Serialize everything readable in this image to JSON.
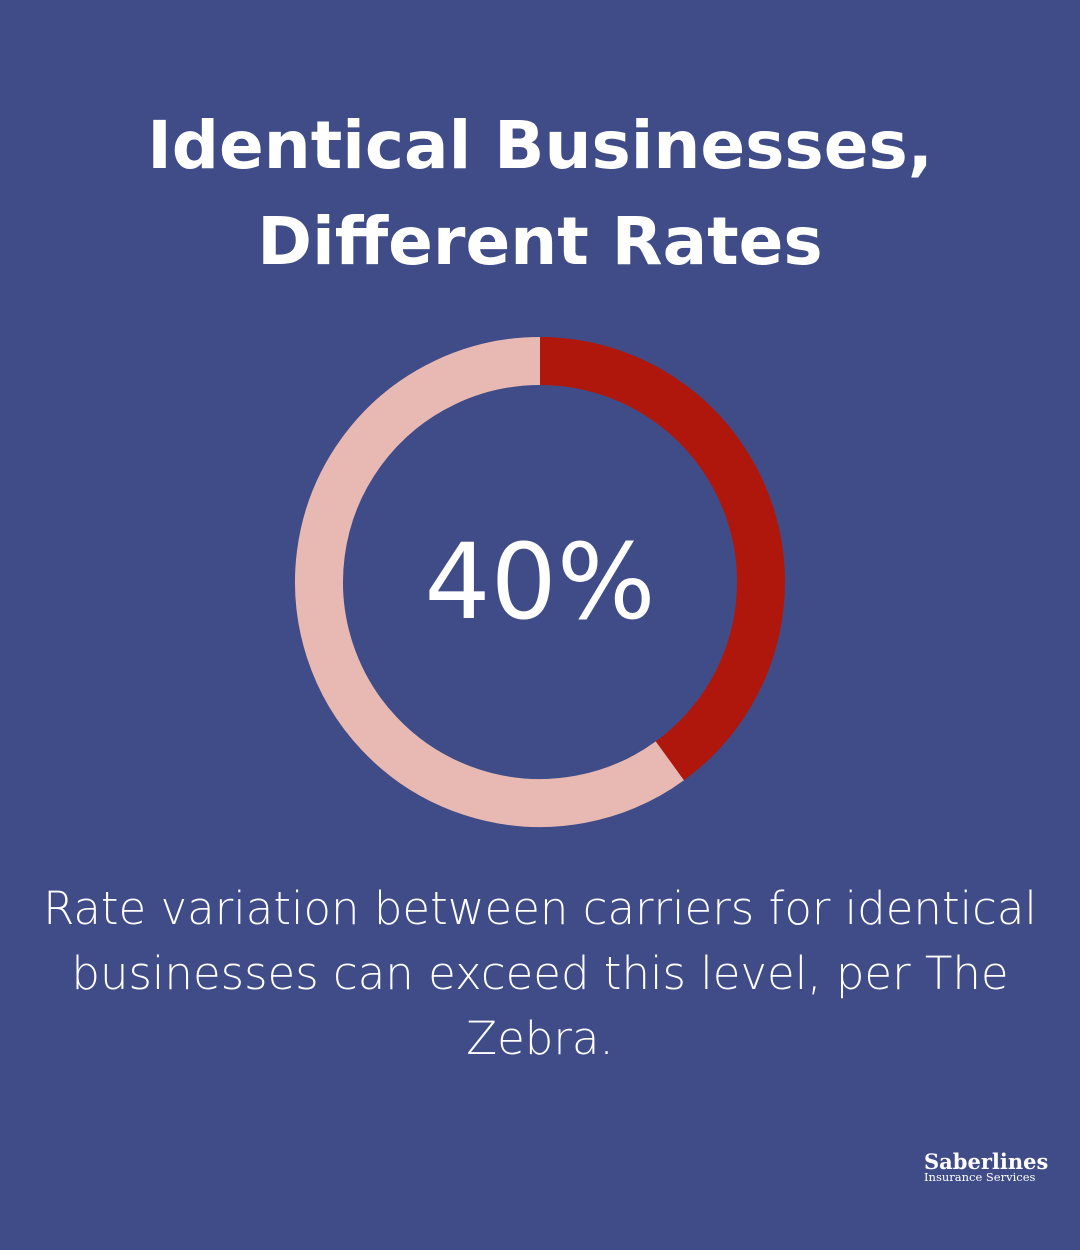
{
  "title_lines": [
    "Identical Businesses,",
    "Different Rates"
  ],
  "chart_data": {
    "type": "pie",
    "variant": "donut",
    "values": [
      40,
      60
    ],
    "center_label": "40%",
    "colors": [
      "#b0170c",
      "#e8b9b3"
    ]
  },
  "caption": "Rate variation between carriers for identical businesses can exceed this level, per The Zebra.",
  "logo": {
    "name": "Saberlines",
    "subtitle": "Insurance Services"
  },
  "colors": {
    "background": "#404c87",
    "text": "#ffffff"
  }
}
